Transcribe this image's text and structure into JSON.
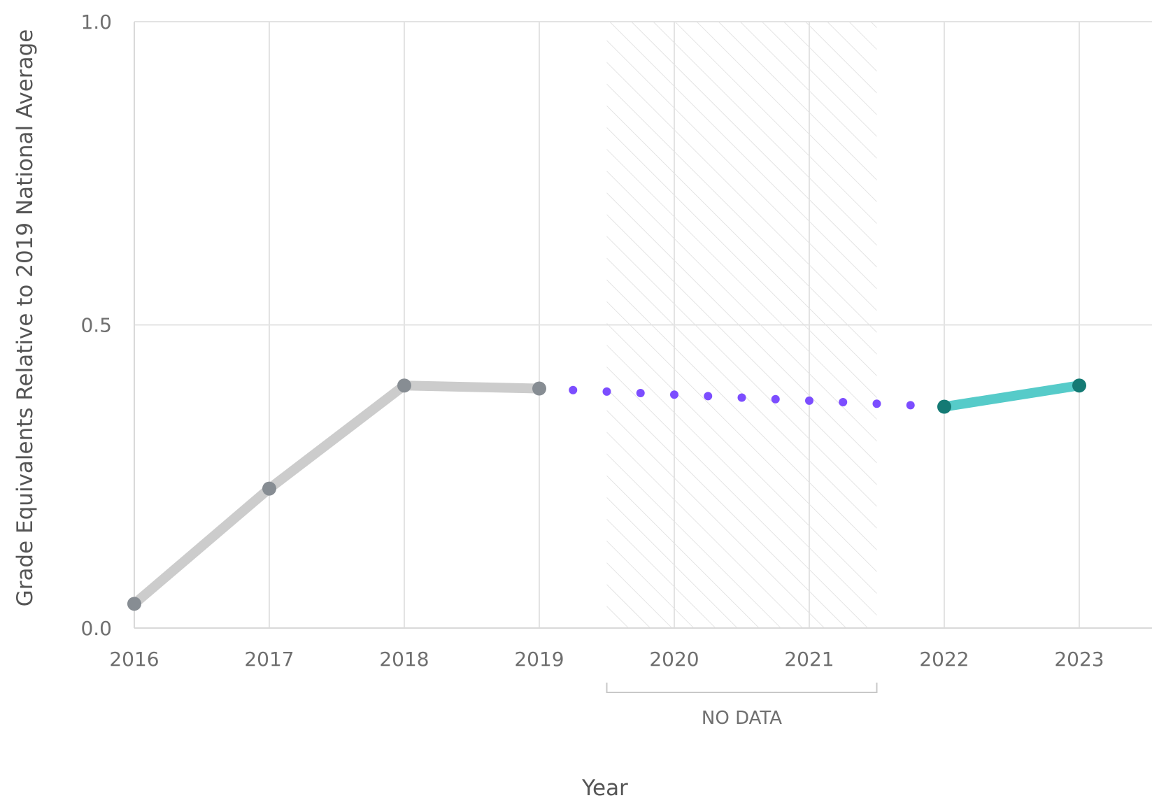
{
  "chart_data": {
    "type": "line",
    "xlabel": "Year",
    "ylabel": "Grade Equivalents Relative to 2019 National Average",
    "x": [
      2016,
      2017,
      2018,
      2019,
      2020,
      2021,
      2022,
      2023
    ],
    "x_tick_labels": [
      "2016",
      "2017",
      "2018",
      "2019",
      "2020",
      "2021",
      "2022",
      "2023"
    ],
    "xlim": [
      2016,
      2023.5
    ],
    "ylim": [
      0.0,
      1.0
    ],
    "y_ticks": [
      0.0,
      0.5,
      1.0
    ],
    "y_tick_labels": [
      "0.0",
      "0.5",
      "1.0"
    ],
    "grid": true,
    "series": [
      {
        "style": "solid",
        "color": "#cccccc",
        "marker_color": "#878d93",
        "x": [
          2016,
          2017,
          2018,
          2019
        ],
        "values": [
          0.04,
          0.23,
          0.4,
          0.395
        ]
      },
      {
        "style": "dotted",
        "color": "#7c4dff",
        "x": [
          2019,
          2022
        ],
        "values": [
          0.395,
          0.365
        ]
      },
      {
        "style": "solid",
        "color": "#56cbc9",
        "marker_color": "#147a74",
        "x": [
          2022,
          2023
        ],
        "values": [
          0.365,
          0.4
        ]
      }
    ],
    "annotations": [
      {
        "type": "shaded-region",
        "pattern": "hatched",
        "x_range": [
          2019.5,
          2021.5
        ],
        "label": "NO DATA"
      }
    ]
  }
}
